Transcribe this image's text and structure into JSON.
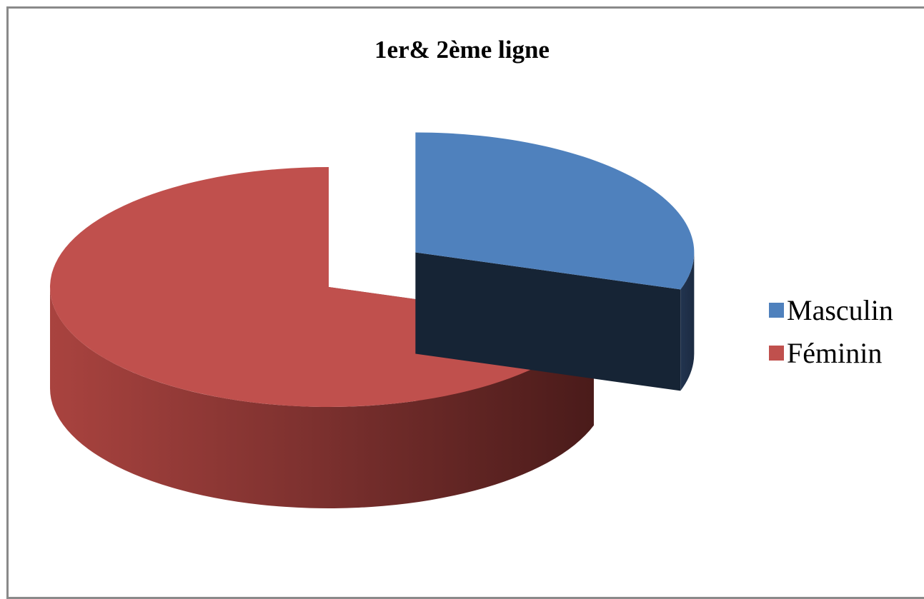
{
  "chart_data": {
    "type": "pie",
    "title": "1er& 2ème ligne",
    "legend_position": "right",
    "series": [
      {
        "name": "Masculin",
        "value": 30,
        "color": "#4F81BD",
        "exploded": true
      },
      {
        "name": "Féminin",
        "value": 70,
        "color": "#C0504D",
        "exploded": false
      }
    ]
  }
}
